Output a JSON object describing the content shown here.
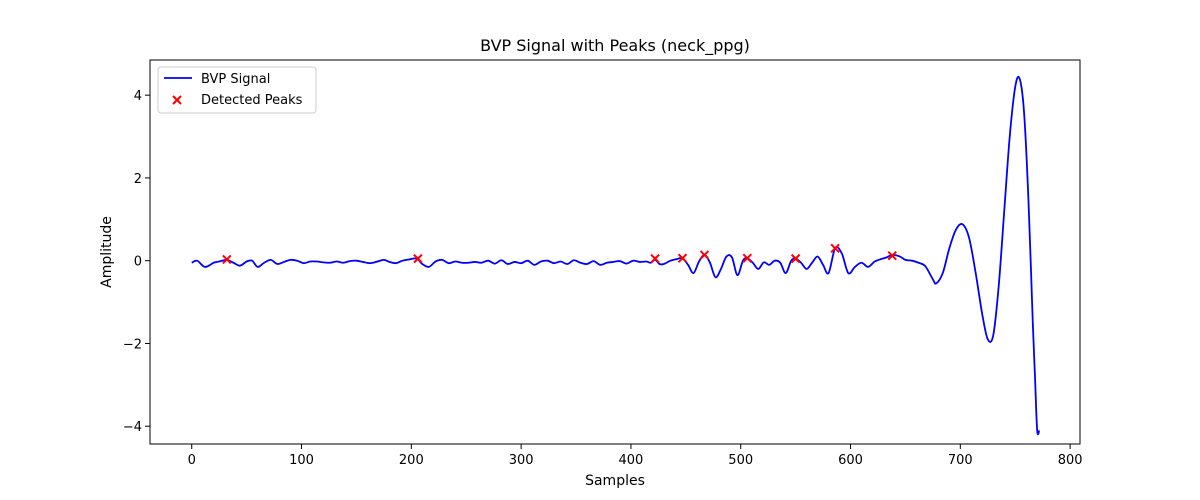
{
  "chart_data": {
    "type": "line",
    "title": "BVP Signal with Peaks (neck_ppg)",
    "xlabel": "Samples",
    "ylabel": "Amplitude",
    "xlim": [
      -38,
      809
    ],
    "ylim": [
      -4.43,
      4.85
    ],
    "xticks": [
      0,
      100,
      200,
      300,
      400,
      500,
      600,
      700,
      800
    ],
    "yticks": [
      -4,
      -2,
      0,
      2,
      4
    ],
    "xtick_labels": [
      "0",
      "100",
      "200",
      "300",
      "400",
      "500",
      "600",
      "700",
      "800"
    ],
    "ytick_labels": [
      "−4",
      "−2",
      "0",
      "2",
      "4"
    ],
    "grid": false,
    "legend": {
      "location": "upper left",
      "entries": [
        "BVP Signal",
        "Detected Peaks"
      ]
    },
    "series": [
      {
        "name": "BVP Signal",
        "kind": "line",
        "color": "#0000ff",
        "x": [
          0,
          5,
          12,
          20,
          25,
          32,
          38,
          44,
          50,
          55,
          60,
          66,
          72,
          78,
          84,
          90,
          96,
          102,
          108,
          114,
          120,
          126,
          132,
          138,
          144,
          150,
          156,
          162,
          168,
          175,
          180,
          186,
          192,
          198,
          205,
          210,
          216,
          222,
          228,
          234,
          240,
          246,
          252,
          258,
          264,
          270,
          276,
          282,
          288,
          294,
          300,
          306,
          312,
          318,
          324,
          330,
          336,
          342,
          348,
          354,
          360,
          366,
          372,
          378,
          384,
          390,
          396,
          402,
          408,
          414,
          418,
          422,
          426,
          430,
          436,
          442,
          447,
          452,
          457,
          462,
          467,
          472,
          477,
          482,
          487,
          492,
          497,
          502,
          506,
          511,
          516,
          521,
          526,
          531,
          536,
          541,
          546,
          550,
          555,
          560,
          565,
          570,
          575,
          580,
          586,
          592,
          598,
          604,
          610,
          616,
          622,
          628,
          633,
          638,
          645,
          650,
          656,
          662,
          668,
          675,
          678,
          684,
          690,
          696,
          702,
          708,
          714,
          720,
          725,
          730,
          735,
          740,
          745,
          750,
          754,
          758,
          762,
          766,
          768,
          770,
          772
        ],
        "y": [
          -0.05,
          0.0,
          -0.15,
          -0.05,
          -0.02,
          0.02,
          -0.05,
          -0.12,
          -0.02,
          0.0,
          -0.15,
          -0.05,
          0.02,
          -0.08,
          -0.03,
          0.02,
          0.0,
          -0.06,
          -0.02,
          -0.02,
          -0.04,
          -0.05,
          -0.02,
          -0.05,
          -0.01,
          0.0,
          -0.03,
          -0.06,
          -0.03,
          0.02,
          -0.03,
          -0.06,
          0.0,
          0.03,
          0.05,
          -0.08,
          -0.15,
          -0.02,
          0.02,
          -0.06,
          -0.02,
          -0.05,
          -0.05,
          -0.03,
          -0.05,
          0.0,
          -0.07,
          0.01,
          -0.08,
          -0.03,
          -0.06,
          0.0,
          -0.1,
          -0.02,
          0.0,
          -0.06,
          -0.02,
          -0.08,
          0.01,
          -0.05,
          -0.08,
          -0.01,
          -0.1,
          -0.05,
          -0.03,
          -0.01,
          -0.07,
          0.0,
          -0.03,
          -0.02,
          -0.05,
          0.02,
          -0.08,
          -0.08,
          0.0,
          0.04,
          0.06,
          -0.1,
          -0.3,
          -0.02,
          0.14,
          -0.05,
          -0.4,
          -0.2,
          0.1,
          0.08,
          -0.35,
          0.0,
          0.06,
          -0.05,
          -0.2,
          -0.04,
          -0.1,
          0.0,
          -0.05,
          -0.3,
          0.0,
          0.05,
          -0.05,
          -0.2,
          -0.05,
          0.1,
          -0.1,
          -0.3,
          0.3,
          0.18,
          -0.3,
          -0.15,
          -0.05,
          -0.15,
          -0.02,
          0.04,
          0.08,
          0.14,
          0.1,
          0.02,
          0.0,
          -0.05,
          -0.13,
          -0.45,
          -0.55,
          -0.3,
          0.3,
          0.75,
          0.88,
          0.55,
          -0.3,
          -1.3,
          -1.9,
          -1.8,
          -0.6,
          1.2,
          3.0,
          4.2,
          4.4,
          3.6,
          1.5,
          -1.5,
          -2.8,
          -4.1,
          -4.1
        ]
      },
      {
        "name": "Detected Peaks",
        "kind": "scatter",
        "marker": "x",
        "color": "#ff0000",
        "x": [
          32,
          206,
          422,
          447,
          467,
          506,
          550,
          586,
          638
        ],
        "y": [
          0.03,
          0.05,
          0.05,
          0.06,
          0.14,
          0.06,
          0.05,
          0.3,
          0.12
        ]
      }
    ]
  }
}
